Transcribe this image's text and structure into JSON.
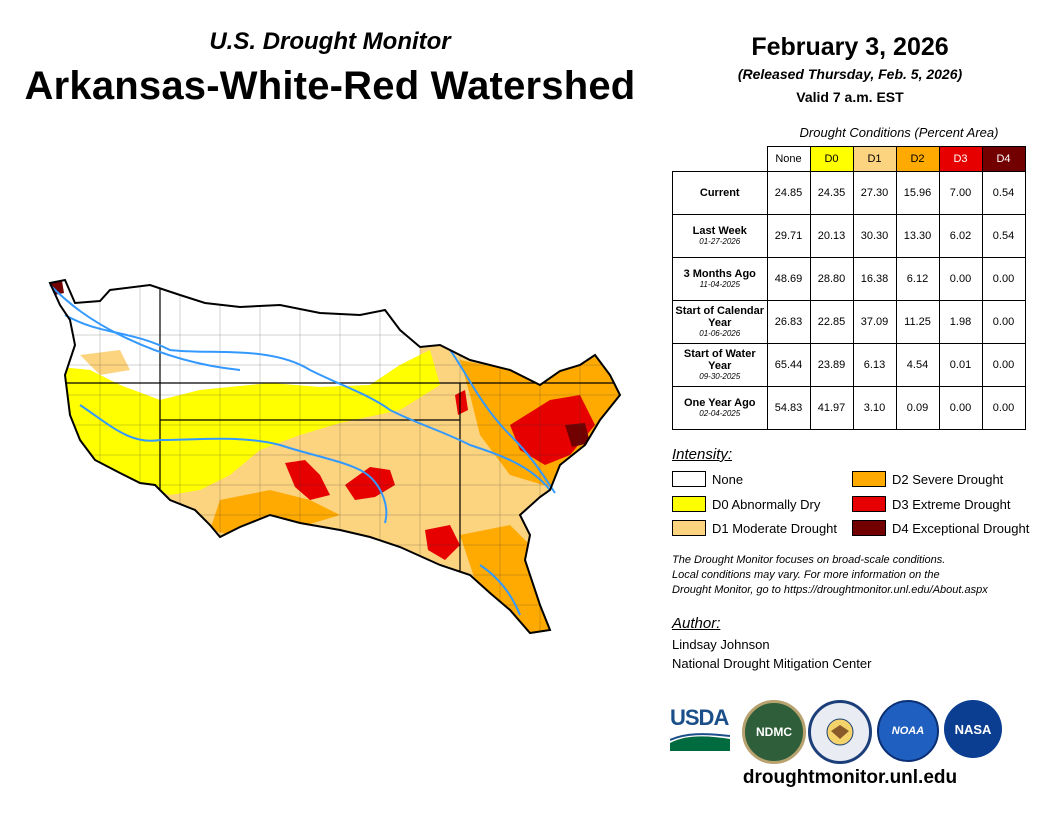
{
  "header": {
    "subtitle": "U.S. Drought Monitor",
    "title": "Arkansas-White-Red Watershed",
    "date": "February 3, 2026",
    "released": "(Released Thursday, Feb. 5, 2026)",
    "valid": "Valid 7 a.m. EST"
  },
  "table": {
    "caption": "Drought Conditions (Percent Area)",
    "columns": [
      "None",
      "D0",
      "D1",
      "D2",
      "D3",
      "D4"
    ],
    "column_colors": [
      "#ffffff",
      "#ffff00",
      "#fcd37f",
      "#ffaa00",
      "#e60000",
      "#730000"
    ],
    "rows": [
      {
        "label": "Current",
        "date": "",
        "values": [
          "24.85",
          "24.35",
          "27.30",
          "15.96",
          "7.00",
          "0.54"
        ]
      },
      {
        "label": "Last Week",
        "date": "01-27-2026",
        "values": [
          "29.71",
          "20.13",
          "30.30",
          "13.30",
          "6.02",
          "0.54"
        ]
      },
      {
        "label": "3 Months Ago",
        "date": "11-04-2025",
        "values": [
          "48.69",
          "28.80",
          "16.38",
          "6.12",
          "0.00",
          "0.00"
        ]
      },
      {
        "label": "Start of Calendar Year",
        "date": "01-06-2026",
        "values": [
          "26.83",
          "22.85",
          "37.09",
          "11.25",
          "1.98",
          "0.00"
        ]
      },
      {
        "label": "Start of Water Year",
        "date": "09-30-2025",
        "values": [
          "65.44",
          "23.89",
          "6.13",
          "4.54",
          "0.01",
          "0.00"
        ]
      },
      {
        "label": "One Year Ago",
        "date": "02-04-2025",
        "values": [
          "54.83",
          "41.97",
          "3.10",
          "0.09",
          "0.00",
          "0.00"
        ]
      }
    ]
  },
  "legend": {
    "title": "Intensity:",
    "items": [
      {
        "label": "None",
        "color": "#ffffff"
      },
      {
        "label": "D0 Abnormally Dry",
        "color": "#ffff00"
      },
      {
        "label": "D1 Moderate Drought",
        "color": "#fcd37f"
      },
      {
        "label": "D2 Severe Drought",
        "color": "#ffaa00"
      },
      {
        "label": "D3 Extreme Drought",
        "color": "#e60000"
      },
      {
        "label": "D4 Exceptional Drought",
        "color": "#730000"
      }
    ]
  },
  "note": {
    "line1": "The Drought Monitor focuses on broad-scale conditions.",
    "line2": "Local conditions may vary. For more information on the",
    "line3": "Drought Monitor, go to https://droughtmonitor.unl.edu/About.aspx"
  },
  "author": {
    "title": "Author:",
    "name": "Lindsay Johnson",
    "org": "National Drought Mitigation Center"
  },
  "logos": {
    "usda": "USDA",
    "ndmc": "NDMC",
    "noaa": "NOAA",
    "nasa": "NASA"
  },
  "website": "droughtmonitor.unl.edu"
}
